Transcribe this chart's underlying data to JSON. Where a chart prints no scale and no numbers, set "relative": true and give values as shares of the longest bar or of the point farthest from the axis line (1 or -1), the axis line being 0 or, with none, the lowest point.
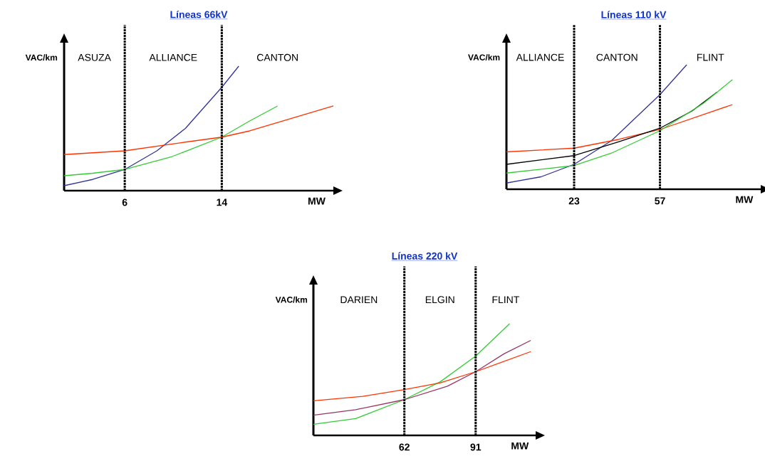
{
  "chart_data": [
    {
      "type": "line",
      "title": "Líneas 66kV",
      "xlabel": "MW",
      "ylabel": "VAC/km",
      "relative": true,
      "xlim": [
        1.0,
        23.2
      ],
      "xticks": [
        6,
        14
      ],
      "ref_lines": [
        {
          "axis": "x",
          "value": 6,
          "line_style": "dotted",
          "color": "#000000"
        },
        {
          "axis": "x",
          "value": 14,
          "line_style": "dotted",
          "color": "#000000"
        }
      ],
      "annotations": [
        "ASUZA",
        "ALLIANCE",
        "CANTON"
      ],
      "series": [
        {
          "color": "#333399",
          "x": [
            1.0,
            3.35,
            6,
            8.65,
            11,
            14,
            15.4
          ],
          "values": [
            0.04,
            0.09,
            0.17,
            0.32,
            0.5,
            0.83,
            1.0
          ]
        },
        {
          "color": "#33cc33",
          "x": [
            1.0,
            3.35,
            6,
            9.8,
            14,
            16.3,
            18.6
          ],
          "values": [
            0.12,
            0.14,
            0.17,
            0.27,
            0.43,
            0.56,
            0.68
          ]
        },
        {
          "color": "#ff3300",
          "x": [
            1.0,
            6,
            11,
            14,
            16.3,
            23.2
          ],
          "values": [
            0.29,
            0.32,
            0.39,
            0.43,
            0.48,
            0.68
          ]
        }
      ]
    },
    {
      "type": "line",
      "title": "Líneas 110 kV",
      "xlabel": "MW",
      "ylabel": "VAC/km",
      "relative": true,
      "xlim": [
        -3.8,
        96.9
      ],
      "xticks": [
        23,
        57
      ],
      "ref_lines": [
        {
          "axis": "x",
          "value": 23,
          "line_style": "dotted",
          "color": "#000000"
        },
        {
          "axis": "x",
          "value": 57,
          "line_style": "dotted",
          "color": "#000000"
        }
      ],
      "annotations": [
        "ALLIANCE",
        "CANTON",
        "FLINT"
      ],
      "series": [
        {
          "color": "#333399",
          "x": [
            -3.8,
            9.9,
            23,
            37.8,
            57,
            67.6
          ],
          "values": [
            0.05,
            0.1,
            0.2,
            0.39,
            0.76,
            1.0
          ]
        },
        {
          "color": "#ff3300",
          "x": [
            -3.8,
            23,
            40.6,
            57,
            85.7
          ],
          "values": [
            0.3,
            0.33,
            0.4,
            0.48,
            0.68
          ]
        },
        {
          "color": "#000000",
          "x": [
            -3.8,
            23,
            40.6,
            57,
            69.8,
            79.6
          ],
          "values": [
            0.2,
            0.27,
            0.38,
            0.49,
            0.63,
            0.78
          ]
        },
        {
          "color": "#33cc33",
          "x": [
            -3.8,
            23,
            37.8,
            57,
            74.2,
            85.7
          ],
          "values": [
            0.13,
            0.19,
            0.29,
            0.47,
            0.69,
            0.88
          ]
        }
      ]
    },
    {
      "type": "line",
      "title": "Líneas 220 kV",
      "xlabel": "MW",
      "ylabel": "VAC/km",
      "relative": true,
      "xlim": [
        25.0,
        115.4
      ],
      "xticks": [
        62,
        91
      ],
      "ref_lines": [
        {
          "axis": "x",
          "value": 62,
          "line_style": "dotted",
          "color": "#000000"
        },
        {
          "axis": "x",
          "value": 91,
          "line_style": "dotted",
          "color": "#000000"
        }
      ],
      "annotations": [
        "DARIEN",
        "ELGIN",
        "FLINT"
      ],
      "series": [
        {
          "color": "#33cc33",
          "x": [
            25.0,
            42.2,
            62,
            76.6,
            91,
            104.8
          ],
          "values": [
            0.1,
            0.15,
            0.32,
            0.48,
            0.71,
            1.0
          ]
        },
        {
          "color": "#993366",
          "x": [
            25.0,
            42.2,
            62,
            79.5,
            91,
            102.5,
            113.4
          ],
          "values": [
            0.18,
            0.23,
            0.32,
            0.44,
            0.57,
            0.73,
            0.85
          ]
        },
        {
          "color": "#ff3300",
          "x": [
            25.0,
            45.1,
            62,
            76.6,
            91,
            113.4
          ],
          "values": [
            0.31,
            0.35,
            0.41,
            0.47,
            0.57,
            0.75
          ]
        }
      ]
    }
  ]
}
